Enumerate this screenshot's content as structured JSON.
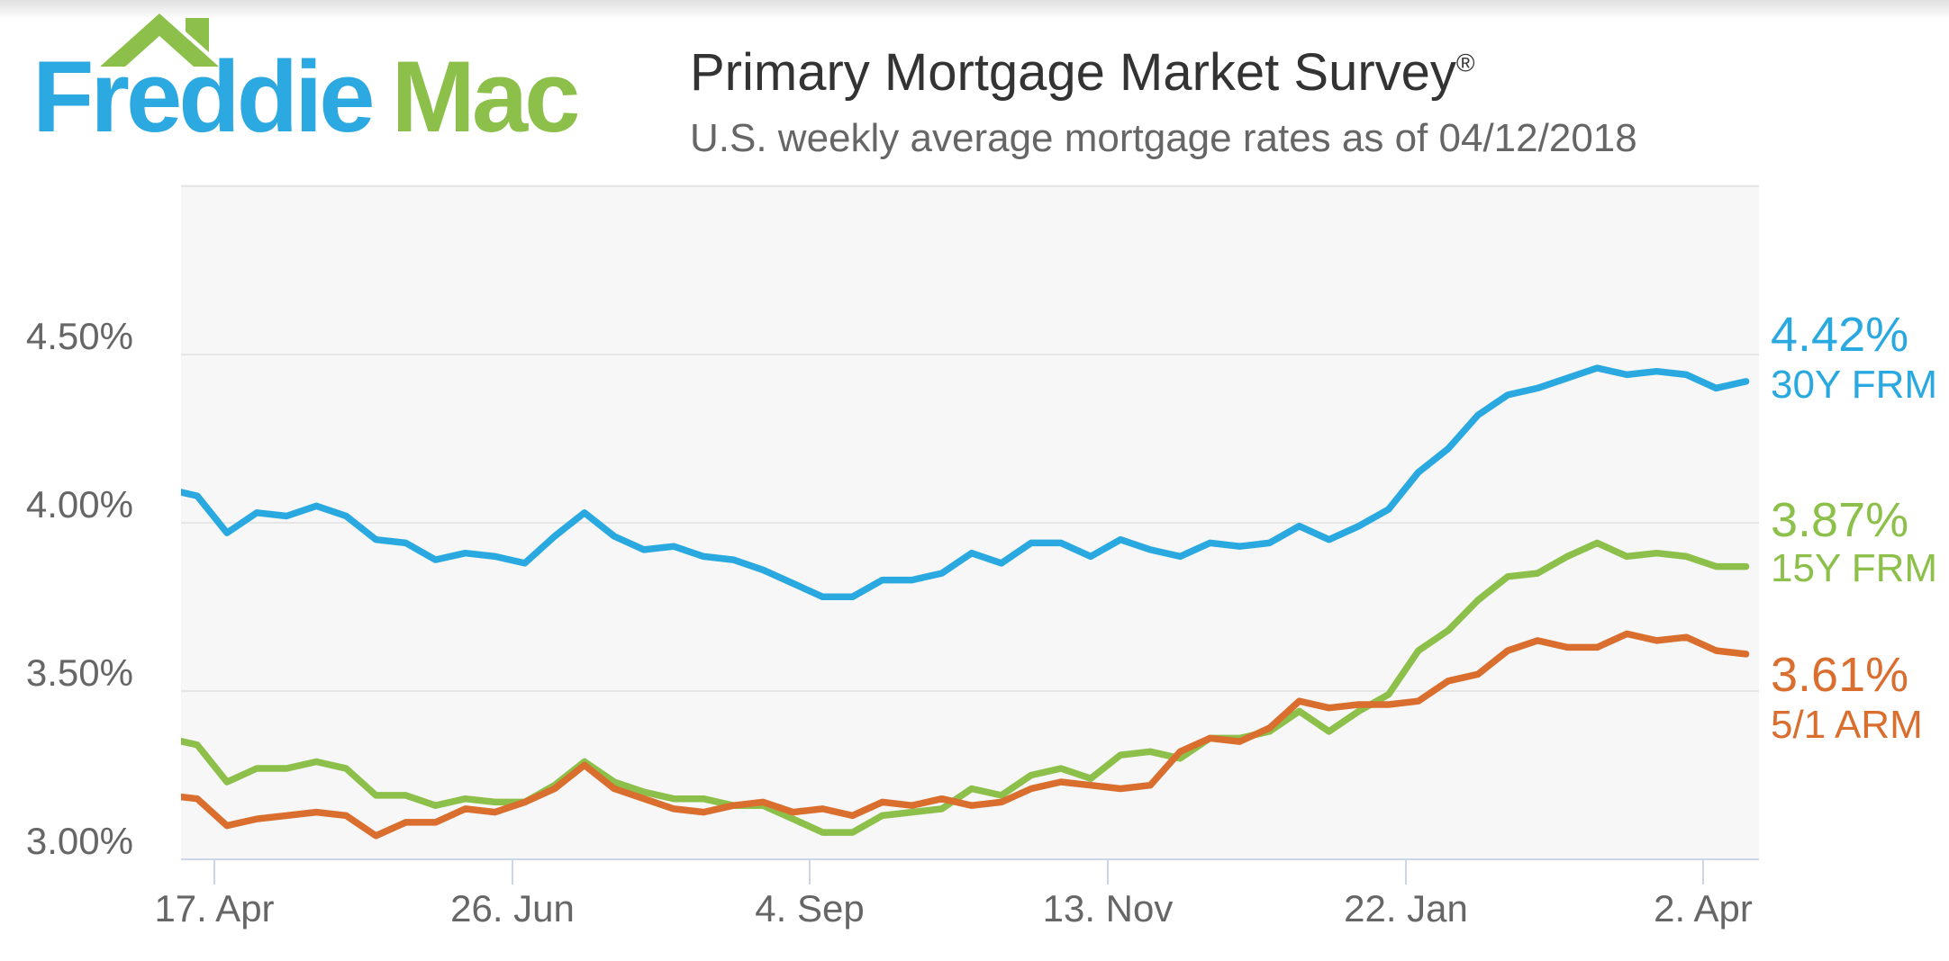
{
  "header": {
    "logo": {
      "word1": "Freddie",
      "word2": "Mac",
      "blue": "#2DA9E1",
      "green": "#8CC04A",
      "roof_icon": "house-roof-with-chimney"
    },
    "title": "Primary Mortgage Market Survey",
    "registered_mark": "®",
    "subtitle": "U.S. weekly average mortgage rates as of 04/12/2018"
  },
  "chart_data": {
    "type": "line",
    "title": "Primary Mortgage Market Survey",
    "subtitle": "U.S. weekly average mortgage rates as of 04/12/2018",
    "frequency": "weekly",
    "x_start_date": "2017-04-06",
    "x_end_date": "2018-04-12",
    "x_tick_labels": [
      "17. Apr",
      "26. Jun",
      "4. Sep",
      "13. Nov",
      "22. Jan",
      "2. Apr"
    ],
    "y_tick_labels": [
      "4.50%",
      "4.00%",
      "3.50%",
      "3.00%"
    ],
    "ylim": [
      3.0,
      5.0
    ],
    "grid": true,
    "legend_position": "right-of-line-ends",
    "colors": {
      "plot_background": "#f7f7f7",
      "gridline": "#e6e6e6",
      "axis_line": "#ccd6eb",
      "axis_text": "#666666"
    },
    "series": [
      {
        "name": "30Y FRM",
        "current": "4.42%",
        "color": "#29A9E0",
        "values": [
          4.1,
          4.08,
          3.97,
          4.03,
          4.02,
          4.05,
          4.02,
          3.95,
          3.94,
          3.89,
          3.91,
          3.9,
          3.88,
          3.96,
          4.03,
          3.96,
          3.92,
          3.93,
          3.9,
          3.89,
          3.86,
          3.82,
          3.78,
          3.78,
          3.83,
          3.83,
          3.85,
          3.91,
          3.88,
          3.94,
          3.94,
          3.9,
          3.95,
          3.92,
          3.9,
          3.94,
          3.93,
          3.94,
          3.99,
          3.95,
          3.99,
          4.04,
          4.15,
          4.22,
          4.32,
          4.38,
          4.4,
          4.43,
          4.46,
          4.44,
          4.45,
          4.44,
          4.4,
          4.42
        ]
      },
      {
        "name": "15Y FRM",
        "current": "3.87%",
        "color": "#8CC04A",
        "values": [
          3.36,
          3.34,
          3.23,
          3.27,
          3.27,
          3.29,
          3.27,
          3.19,
          3.19,
          3.16,
          3.18,
          3.17,
          3.17,
          3.22,
          3.29,
          3.23,
          3.2,
          3.18,
          3.18,
          3.16,
          3.16,
          3.12,
          3.08,
          3.08,
          3.13,
          3.14,
          3.15,
          3.21,
          3.19,
          3.25,
          3.27,
          3.24,
          3.31,
          3.32,
          3.3,
          3.36,
          3.36,
          3.38,
          3.44,
          3.38,
          3.44,
          3.49,
          3.62,
          3.68,
          3.77,
          3.84,
          3.85,
          3.9,
          3.94,
          3.9,
          3.91,
          3.9,
          3.87,
          3.87
        ]
      },
      {
        "name": "5/1 ARM",
        "current": "3.61%",
        "color": "#D96E2E",
        "values": [
          3.19,
          3.18,
          3.1,
          3.12,
          3.13,
          3.14,
          3.13,
          3.07,
          3.11,
          3.11,
          3.15,
          3.14,
          3.17,
          3.21,
          3.28,
          3.21,
          3.18,
          3.15,
          3.14,
          3.16,
          3.17,
          3.14,
          3.15,
          3.13,
          3.17,
          3.16,
          3.18,
          3.16,
          3.17,
          3.21,
          3.23,
          3.22,
          3.21,
          3.22,
          3.32,
          3.36,
          3.35,
          3.39,
          3.47,
          3.45,
          3.46,
          3.46,
          3.47,
          3.53,
          3.55,
          3.62,
          3.65,
          3.63,
          3.63,
          3.67,
          3.65,
          3.66,
          3.62,
          3.61
        ]
      }
    ]
  }
}
